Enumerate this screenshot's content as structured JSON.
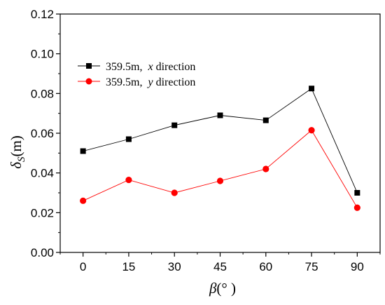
{
  "chart_data": {
    "type": "line",
    "x": [
      0,
      15,
      30,
      45,
      60,
      75,
      90
    ],
    "xticks": [
      "0",
      "15",
      "30",
      "45",
      "60",
      "75",
      "90"
    ],
    "xlim": [
      -7.5,
      97.5
    ],
    "ylim": [
      0.0,
      0.12
    ],
    "yticks": [
      "0.00",
      "0.02",
      "0.04",
      "0.06",
      "0.08",
      "0.10",
      "0.12"
    ],
    "xlabel": {
      "symbol": "β",
      "unit": "(°  )"
    },
    "ylabel": {
      "symbol": "δ",
      "subscript": "S",
      "unit": "(m)"
    },
    "grid": false,
    "legend_position": "top-left",
    "series": [
      {
        "name": "359.5m,",
        "name_italic": "x",
        "name_suffix": " direction",
        "color": "#000000",
        "marker": "square",
        "values": [
          0.051,
          0.057,
          0.064,
          0.069,
          0.0665,
          0.0825,
          0.03
        ]
      },
      {
        "name": "359.5m,",
        "name_italic": "y",
        "name_suffix": " direction",
        "color": "#ff0000",
        "marker": "circle",
        "values": [
          0.026,
          0.0365,
          0.03,
          0.036,
          0.042,
          0.0615,
          0.0225
        ]
      }
    ]
  }
}
